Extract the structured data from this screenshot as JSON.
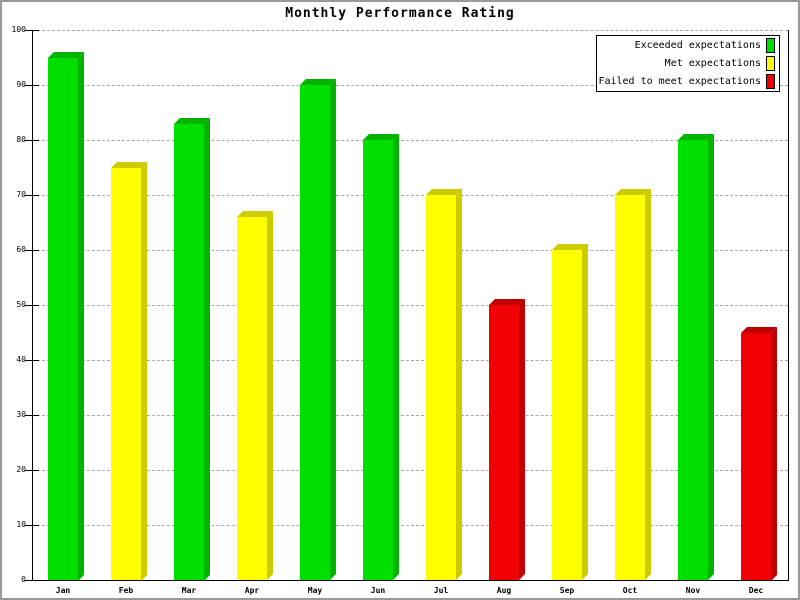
{
  "chart_data": {
    "type": "bar",
    "title": "Monthly Performance Rating",
    "categories": [
      "Jan",
      "Feb",
      "Mar",
      "Apr",
      "May",
      "Jun",
      "Jul",
      "Aug",
      "Sep",
      "Oct",
      "Nov",
      "Dec"
    ],
    "values": [
      95,
      75,
      83,
      66,
      90,
      80,
      70,
      50,
      60,
      70,
      80,
      45
    ],
    "point_status": [
      "exceeded",
      "met",
      "exceeded",
      "met",
      "exceeded",
      "exceeded",
      "met",
      "failed",
      "met",
      "met",
      "exceeded",
      "failed"
    ],
    "ylim": [
      0,
      100
    ],
    "ytick_step": 10,
    "ytick_labels": [
      "0",
      "10",
      "20",
      "30",
      "40",
      "50",
      "60",
      "70",
      "80",
      "90",
      "100"
    ],
    "grid": true,
    "grid_style": "dashed",
    "legend_position": "top-right",
    "legend": [
      {
        "key": "exceeded",
        "label": "Exceeded expectations",
        "color": "#00e000"
      },
      {
        "key": "met",
        "label": "Met expectations",
        "color": "#ffff00"
      },
      {
        "key": "failed",
        "label": "Failed to meet expectations",
        "color": "#f00000"
      }
    ],
    "colors": {
      "exceeded": {
        "face": "#00e000",
        "dark": "#00b400"
      },
      "met": {
        "face": "#ffff00",
        "dark": "#cccc00"
      },
      "failed": {
        "face": "#f00000",
        "dark": "#c00000"
      }
    },
    "axis_color": "#000000",
    "gridline_color": "#a8a8a8",
    "background_color": "#ffffff",
    "frame_color": "#999999"
  }
}
